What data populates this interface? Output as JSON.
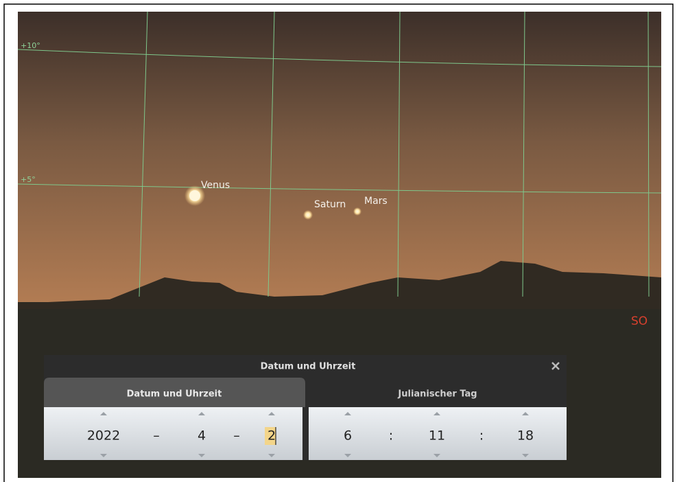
{
  "sky": {
    "grid_labels": [
      "+10°",
      "+5°"
    ],
    "objects": [
      "Venus",
      "Saturn",
      "Mars"
    ],
    "compass": "SO"
  },
  "dialog": {
    "title": "Datum und Uhrzeit",
    "tabs": [
      "Datum und Uhrzeit",
      "Julianischer Tag"
    ],
    "date": {
      "year": "2022",
      "sep1": "–",
      "month": "4",
      "sep2": "–",
      "day": "2"
    },
    "time": {
      "hour": "6",
      "sep1": ":",
      "minute": "11",
      "sep2": ":",
      "second": "18"
    }
  }
}
